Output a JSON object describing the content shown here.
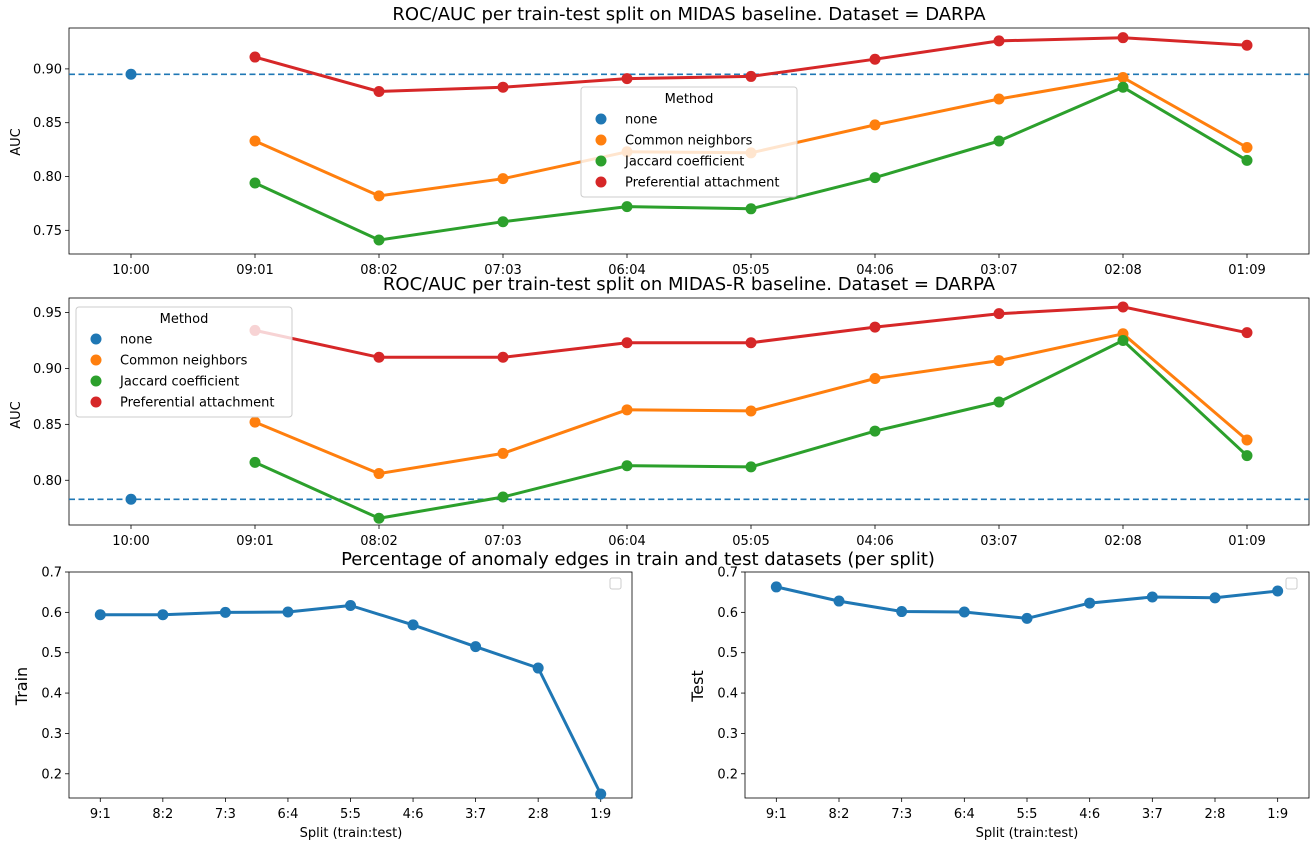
{
  "chart_data": [
    {
      "type": "line",
      "title": "ROC/AUC per train-test split on MIDAS baseline. Dataset = DARPA",
      "xlabel": "",
      "ylabel": "AUC",
      "categories": [
        "10:00",
        "09:01",
        "08:02",
        "07:03",
        "06:04",
        "05:05",
        "04:06",
        "03:07",
        "02:08",
        "01:09"
      ],
      "ylim": [
        0.728,
        0.938
      ],
      "yticks": [
        0.75,
        0.8,
        0.85,
        0.9
      ],
      "ytick_labels": [
        "0.75",
        "0.80",
        "0.85",
        "0.90"
      ],
      "baseline": 0.895,
      "legend": {
        "title": "Method",
        "placement": "center"
      },
      "series": [
        {
          "name": "none",
          "color": "#1f77b4",
          "values": [
            0.895,
            null,
            null,
            null,
            null,
            null,
            null,
            null,
            null,
            null
          ]
        },
        {
          "name": "Common neighbors",
          "color": "#ff7f0e",
          "values": [
            null,
            0.833,
            0.782,
            0.798,
            0.823,
            0.822,
            0.848,
            0.872,
            0.892,
            0.827
          ]
        },
        {
          "name": "Jaccard coefficient",
          "color": "#2ca02c",
          "values": [
            null,
            0.794,
            0.741,
            0.758,
            0.772,
            0.77,
            0.799,
            0.833,
            0.883,
            0.815
          ]
        },
        {
          "name": "Preferential attachment",
          "color": "#d62728",
          "values": [
            null,
            0.911,
            0.879,
            0.883,
            0.891,
            0.893,
            0.909,
            0.926,
            0.929,
            0.922
          ]
        }
      ]
    },
    {
      "type": "line",
      "title": "ROC/AUC per train-test split on MIDAS-R baseline. Dataset = DARPA",
      "xlabel": "",
      "ylabel": "AUC",
      "categories": [
        "10:00",
        "09:01",
        "08:02",
        "07:03",
        "06:04",
        "05:05",
        "04:06",
        "03:07",
        "02:08",
        "01:09"
      ],
      "ylim": [
        0.76,
        0.963
      ],
      "yticks": [
        0.8,
        0.85,
        0.9,
        0.95
      ],
      "ytick_labels": [
        "0.80",
        "0.85",
        "0.90",
        "0.95"
      ],
      "baseline": 0.783,
      "legend": {
        "title": "Method",
        "placement": "upper left"
      },
      "series": [
        {
          "name": "none",
          "color": "#1f77b4",
          "values": [
            0.783,
            null,
            null,
            null,
            null,
            null,
            null,
            null,
            null,
            null
          ]
        },
        {
          "name": "Common neighbors",
          "color": "#ff7f0e",
          "values": [
            null,
            0.852,
            0.806,
            0.824,
            0.863,
            0.862,
            0.891,
            0.907,
            0.931,
            0.836
          ]
        },
        {
          "name": "Jaccard coefficient",
          "color": "#2ca02c",
          "values": [
            null,
            0.816,
            0.766,
            0.785,
            0.813,
            0.812,
            0.844,
            0.87,
            0.925,
            0.822
          ]
        },
        {
          "name": "Preferential attachment",
          "color": "#d62728",
          "values": [
            null,
            0.934,
            0.91,
            0.91,
            0.923,
            0.923,
            0.937,
            0.949,
            0.955,
            0.932
          ]
        }
      ]
    },
    {
      "type": "line",
      "title": "Percentage of anomaly edges in train and test datasets (per split)",
      "xlabel": "Split (train:test)",
      "ylabel": "Train",
      "categories": [
        "9:1",
        "8:2",
        "7:3",
        "6:4",
        "5:5",
        "4:6",
        "3:7",
        "2:8",
        "1:9"
      ],
      "ylim": [
        0.14,
        0.7
      ],
      "yticks": [
        0.2,
        0.3,
        0.4,
        0.5,
        0.6,
        0.7
      ],
      "ytick_labels": [
        "0.2",
        "0.3",
        "0.4",
        "0.5",
        "0.6",
        "0.7"
      ],
      "series": [
        {
          "color": "#1f77b4",
          "values": [
            0.594,
            0.594,
            0.6,
            0.601,
            0.617,
            0.569,
            0.515,
            0.462,
            0.15
          ]
        }
      ]
    },
    {
      "type": "line",
      "title": "",
      "xlabel": "Split (train:test)",
      "ylabel": "Test",
      "categories": [
        "9:1",
        "8:2",
        "7:3",
        "6:4",
        "5:5",
        "4:6",
        "3:7",
        "2:8",
        "1:9"
      ],
      "ylim": [
        0.14,
        0.7
      ],
      "yticks": [
        0.2,
        0.3,
        0.4,
        0.5,
        0.6,
        0.7
      ],
      "ytick_labels": [
        "0.2",
        "0.3",
        "0.4",
        "0.5",
        "0.6",
        "0.7"
      ],
      "series": [
        {
          "color": "#1f77b4",
          "values": [
            0.663,
            0.628,
            0.602,
            0.601,
            0.585,
            0.623,
            0.638,
            0.636,
            0.653
          ]
        }
      ]
    }
  ]
}
